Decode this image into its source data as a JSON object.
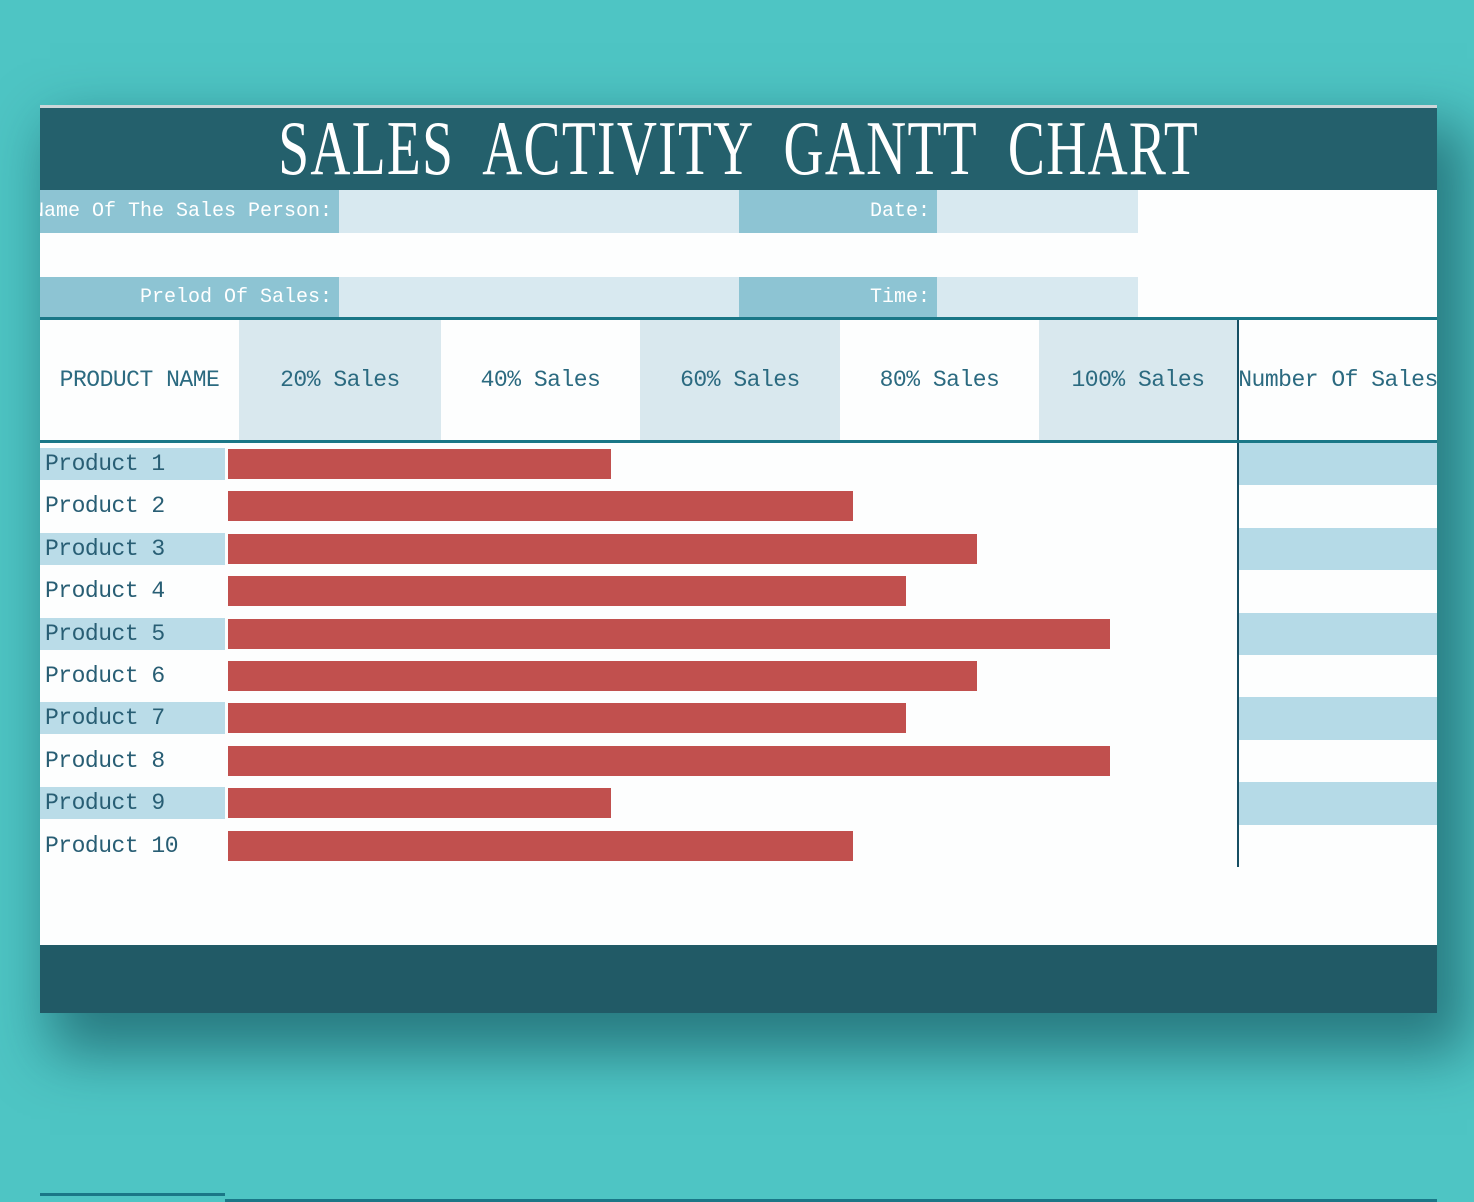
{
  "title": "SALES ACTIVITY GANTT CHART",
  "meta": {
    "name_label": "Name Of The Sales Person:",
    "name_value": "",
    "date_label": "Date:",
    "date_value": "",
    "period_label": "Prelod Of Sales:",
    "period_value": "",
    "time_label": "Time:",
    "time_value": ""
  },
  "table": {
    "columns": [
      "PRODUCT NAME",
      "20% Sales",
      "40% Sales",
      "60% Sales",
      "80% Sales",
      "100% Sales",
      "Number Of Sales"
    ],
    "rows": [
      {
        "product": "Product 1",
        "number_of_sales": ""
      },
      {
        "product": "Product 2",
        "number_of_sales": ""
      },
      {
        "product": "Product 3",
        "number_of_sales": ""
      },
      {
        "product": "Product 4",
        "number_of_sales": ""
      },
      {
        "product": "Product 5",
        "number_of_sales": ""
      },
      {
        "product": "Product 6",
        "number_of_sales": ""
      },
      {
        "product": "Product 7",
        "number_of_sales": ""
      },
      {
        "product": "Product 8",
        "number_of_sales": ""
      },
      {
        "product": "Product 9",
        "number_of_sales": ""
      },
      {
        "product": "Product 10",
        "number_of_sales": ""
      }
    ]
  },
  "chart_data": {
    "type": "bar",
    "orientation": "horizontal",
    "title": "SALES ACTIVITY GANTT CHART",
    "categories": [
      "Product 1",
      "Product 2",
      "Product 3",
      "Product 4",
      "Product 5",
      "Product 6",
      "Product 7",
      "Product 8",
      "Product 9",
      "Product 10"
    ],
    "values": [
      37.2,
      61.4,
      73.8,
      66.7,
      87.1,
      73.8,
      66.7,
      87.1,
      37.2,
      61.4
    ],
    "value_unit": "% sales (estimated from bar length)",
    "x_ticks": [
      "20% Sales",
      "40% Sales",
      "60% Sales",
      "80% Sales",
      "100% Sales"
    ],
    "xlim": [
      0,
      100
    ],
    "bar_color": "#c1504e",
    "grid": false,
    "legend": "none"
  },
  "colors": {
    "page_background": "#4ec5c4",
    "band_dark_teal": "#24606c",
    "footer_dark_teal": "#215a66",
    "label_medium_blue": "#8dc4d3",
    "input_light_blue": "#d8e9f0",
    "header_column_blue": "#d9e8ee",
    "row_stripe_blue": "#badce8",
    "number_stripe_blue": "#b5dae7",
    "bar_red": "#c1504e",
    "line_teal": "#1a7787",
    "divider_dark": "#174f63",
    "text_teal": "#2b6a80"
  }
}
